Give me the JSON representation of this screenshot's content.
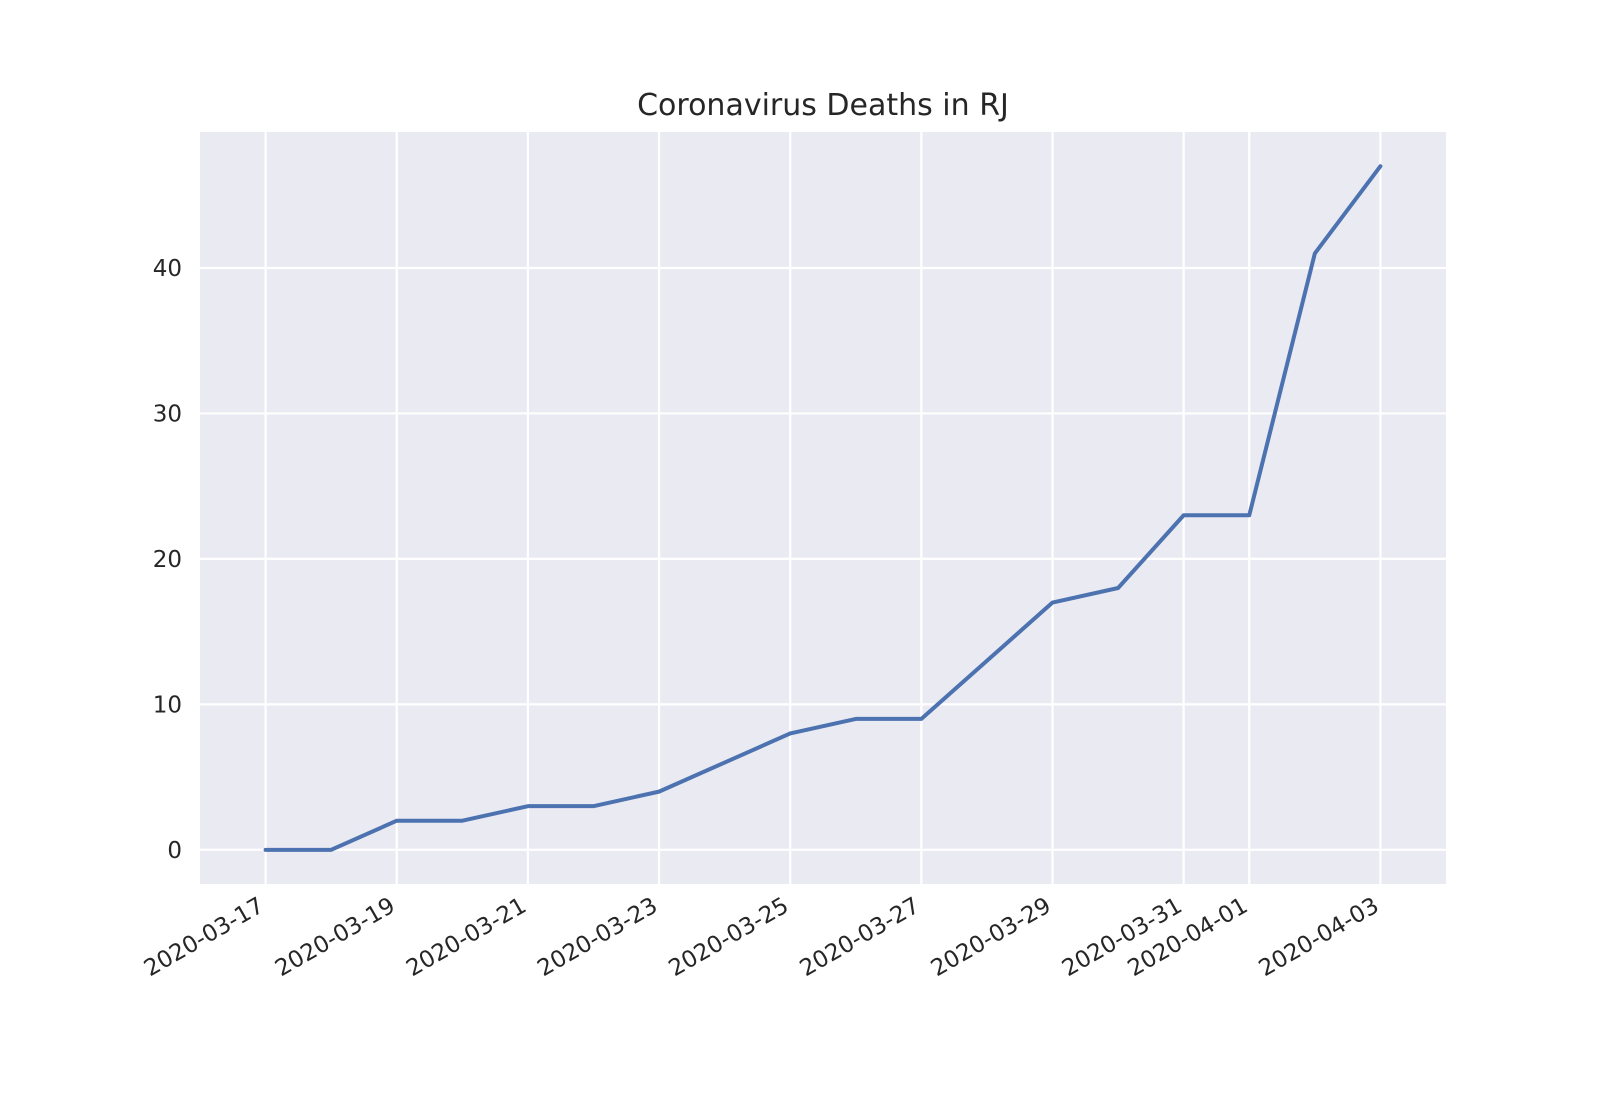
{
  "chart_data": {
    "type": "line",
    "title": "Coronavirus Deaths in RJ",
    "xlabel": "",
    "ylabel": "",
    "x": [
      "2020-03-17",
      "2020-03-18",
      "2020-03-19",
      "2020-03-20",
      "2020-03-21",
      "2020-03-22",
      "2020-03-23",
      "2020-03-24",
      "2020-03-25",
      "2020-03-26",
      "2020-03-27",
      "2020-03-28",
      "2020-03-29",
      "2020-03-30",
      "2020-03-31",
      "2020-04-01",
      "2020-04-02",
      "2020-04-03"
    ],
    "series": [
      {
        "values": [
          0,
          0,
          2,
          2,
          3,
          3,
          4,
          6,
          8,
          9,
          9,
          13,
          17,
          18,
          23,
          23,
          41,
          47
        ]
      }
    ],
    "xticks": [
      "2020-03-17",
      "2020-03-19",
      "2020-03-21",
      "2020-03-23",
      "2020-03-25",
      "2020-03-27",
      "2020-03-29",
      "2020-03-31",
      "2020-04-01",
      "2020-04-03"
    ],
    "yticks": [
      0,
      10,
      20,
      30,
      40
    ],
    "xlim": [
      "2020-03-16",
      "2020-04-04"
    ],
    "ylim": [
      -2.35,
      49.35
    ],
    "grid": true,
    "colors": {
      "line": "#4c72b0",
      "background": "#eaeaf2",
      "grid": "#ffffff"
    }
  }
}
